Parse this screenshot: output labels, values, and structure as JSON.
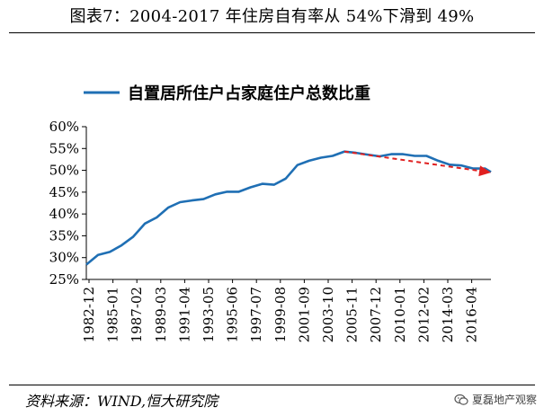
{
  "figure": {
    "title": "图表7：2004-2017 年住房自有率从 54%下滑到 49%",
    "source": "资料来源：WIND,恒大研究院",
    "watermark": "夏磊地产观察",
    "watermark_icon": "wechat-icon"
  },
  "chart_data": {
    "type": "line",
    "title": "",
    "xlabel": "",
    "ylabel": "",
    "ylim": [
      0.25,
      0.6
    ],
    "y_ticks": [
      "25%",
      "30%",
      "35%",
      "40%",
      "45%",
      "50%",
      "55%",
      "60%"
    ],
    "x_ticks": [
      "1982-12",
      "1985-01",
      "1987-02",
      "1989-03",
      "1991-04",
      "1993-05",
      "1995-06",
      "1997-07",
      "1999-08",
      "2001-09",
      "2003-10",
      "2005-11",
      "2007-12",
      "2010-01",
      "2012-02",
      "2014-03",
      "2016-04"
    ],
    "grid": false,
    "legend": "top",
    "series": [
      {
        "name": "自置居所住户占家庭住户总数比重",
        "color": "#1f6fb4",
        "x": [
          1982.9,
          1983.9,
          1984.9,
          1985.9,
          1986.9,
          1987.9,
          1988.9,
          1989.9,
          1990.9,
          1991.9,
          1992.9,
          1993.9,
          1994.9,
          1995.9,
          1996.9,
          1997.9,
          1998.9,
          1999.9,
          2000.9,
          2001.9,
          2002.9,
          2003.9,
          2004.9,
          2005.9,
          2006.9,
          2007.9,
          2008.9,
          2009.9,
          2010.9,
          2011.9,
          2012.9,
          2013.9,
          2014.9,
          2015.9,
          2016.9,
          2017.4
        ],
        "values": [
          0.284,
          0.306,
          0.313,
          0.328,
          0.348,
          0.378,
          0.392,
          0.415,
          0.427,
          0.431,
          0.434,
          0.445,
          0.451,
          0.451,
          0.461,
          0.469,
          0.467,
          0.481,
          0.512,
          0.522,
          0.529,
          0.533,
          0.543,
          0.54,
          0.536,
          0.532,
          0.537,
          0.537,
          0.533,
          0.533,
          0.522,
          0.513,
          0.511,
          0.504,
          0.504,
          0.496
        ]
      }
    ],
    "trend": {
      "color": "#e02020",
      "x": [
        2004.9,
        2017.4
      ],
      "values": [
        0.543,
        0.495
      ]
    }
  }
}
